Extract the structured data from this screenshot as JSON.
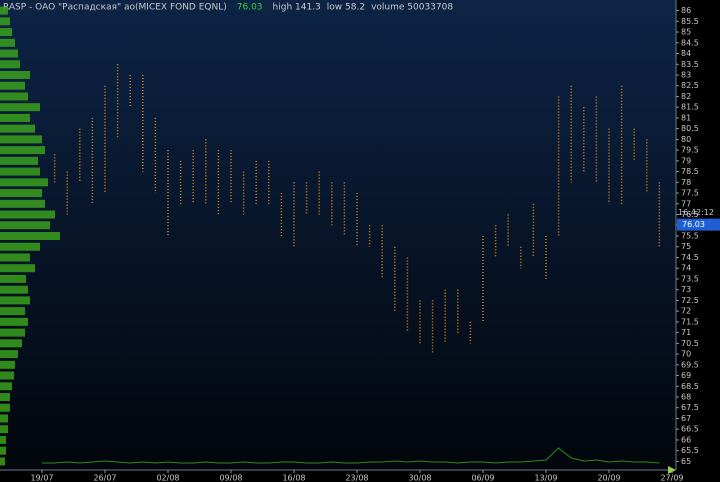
{
  "chart_data": {
    "type": "range-bar",
    "title": "RASP - OAO \"Распадская\" ao(MICEX FOND EQNL)",
    "last": 76.03,
    "stats": [
      "high 141.3",
      "low 58.2",
      "volume 50033708"
    ],
    "time": "16:42:12",
    "color": "#d98a1a",
    "ylim": [
      64.6,
      86.4
    ],
    "yticks": [
      65,
      65.5,
      66,
      66.5,
      67,
      67.5,
      68,
      68.5,
      69,
      69.5,
      70,
      70.5,
      71,
      71.5,
      72,
      72.5,
      73,
      73.5,
      74,
      74.5,
      75,
      75.5,
      76,
      76.5,
      77,
      77.5,
      78,
      78.5,
      79,
      79.5,
      80,
      80.5,
      81,
      81.5,
      82,
      82.5,
      83,
      83.5,
      84,
      84.5,
      85,
      85.5,
      86
    ],
    "categories": [
      "19/07",
      null,
      null,
      null,
      null,
      "26/07",
      null,
      null,
      null,
      null,
      "02/08",
      null,
      null,
      null,
      null,
      "09/08",
      null,
      null,
      null,
      null,
      "16/08",
      null,
      null,
      null,
      null,
      "23/08",
      null,
      null,
      null,
      null,
      "30/08",
      null,
      null,
      null,
      null,
      "06/09",
      null,
      null,
      null,
      null,
      "13/09",
      null,
      null,
      null,
      null,
      "20/09",
      null,
      null,
      null,
      null,
      "27/09"
    ],
    "series": [
      {
        "name": "high",
        "values": [
          null,
          79.3,
          78.5,
          80.5,
          81,
          82.5,
          83.5,
          83,
          83,
          81,
          79.5,
          79,
          79.5,
          80,
          79.5,
          79.5,
          78.5,
          79,
          79,
          77.5,
          78,
          78,
          78.5,
          78,
          78,
          77.5,
          76,
          76,
          75,
          74.5,
          72.5,
          72.5,
          73,
          73,
          71.5,
          75.5,
          76,
          76.5,
          75,
          77,
          75.5,
          82,
          82.5,
          81.5,
          82,
          80.5,
          82.5,
          80.5,
          80,
          78,
          null
        ]
      },
      {
        "name": "low",
        "values": [
          null,
          78,
          76.5,
          78,
          77,
          77.5,
          80,
          81.5,
          78.5,
          77.5,
          75.5,
          77,
          77,
          77,
          76.5,
          77,
          76.5,
          77,
          77,
          75.5,
          75,
          76.5,
          76.5,
          76,
          75.5,
          75,
          75,
          73.5,
          72,
          71,
          70.5,
          70,
          70.5,
          71,
          70.5,
          71.5,
          74.5,
          75,
          74,
          74.5,
          73.5,
          75.5,
          78,
          78.5,
          78,
          77,
          77,
          79,
          77.5,
          75,
          null
        ]
      }
    ],
    "volume": [
      3,
      3,
      4,
      3,
      4,
      5,
      4,
      3,
      4,
      3,
      4,
      3,
      3,
      4,
      3,
      3,
      4,
      3,
      3,
      4,
      4,
      3,
      3,
      4,
      3,
      3,
      4,
      4,
      5,
      4,
      5,
      4,
      4,
      3,
      4,
      4,
      3,
      4,
      4,
      5,
      6,
      18,
      8,
      5,
      6,
      4,
      5,
      4,
      4,
      3,
      null
    ],
    "volume_color": "#2e8b1e",
    "volume_profile": {
      "prices": [
        65,
        65.5,
        66,
        66.5,
        67,
        67.5,
        68,
        68.5,
        69,
        69.5,
        70,
        70.5,
        71,
        71.5,
        72,
        72.5,
        73,
        73.5,
        74,
        74.5,
        75,
        75.5,
        76,
        76.5,
        77,
        77.5,
        78,
        78.5,
        79,
        79.5,
        80,
        80.5,
        81,
        81.5,
        82,
        82.5,
        83,
        83.5,
        84,
        84.5,
        85,
        85.5,
        86
      ],
      "values": [
        5,
        6,
        6,
        8,
        8,
        10,
        10,
        12,
        14,
        15,
        18,
        22,
        25,
        28,
        25,
        30,
        28,
        26,
        35,
        30,
        40,
        60,
        50,
        55,
        45,
        42,
        48,
        40,
        38,
        45,
        42,
        35,
        30,
        40,
        28,
        25,
        30,
        20,
        18,
        15,
        12,
        10,
        8
      ],
      "color": "#3aa01c"
    }
  }
}
